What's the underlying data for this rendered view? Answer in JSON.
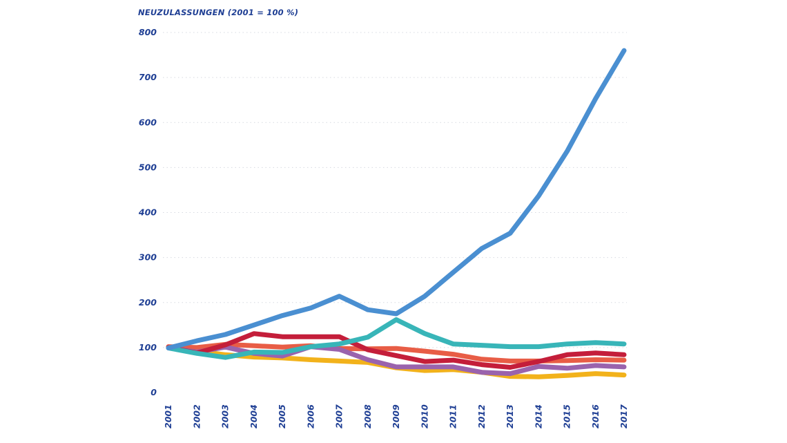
{
  "chart_data": {
    "type": "line",
    "title": "NEUZULASSUNGEN (2001 = 100 %)",
    "x": [
      "2001",
      "2002",
      "2003",
      "2004",
      "2005",
      "2006",
      "2007",
      "2008",
      "2009",
      "2010",
      "2011",
      "2012",
      "2013",
      "2014",
      "2015",
      "2016",
      "2017"
    ],
    "yticks": [
      "0",
      "100",
      "200",
      "300",
      "400",
      "500",
      "600",
      "700",
      "800"
    ],
    "ylim": [
      0,
      800
    ],
    "grid": true,
    "series": [
      {
        "color": "#f2b21b",
        "values": [
          100,
          92,
          84,
          79,
          77,
          73,
          70,
          67,
          55,
          49,
          51,
          45,
          36,
          35,
          38,
          42,
          39
        ]
      },
      {
        "color": "#e85d46",
        "values": [
          102,
          100,
          107,
          104,
          101,
          104,
          98,
          97,
          98,
          92,
          85,
          74,
          70,
          70,
          71,
          73,
          72
        ]
      },
      {
        "color": "#9a63ad",
        "values": [
          100,
          90,
          101,
          87,
          81,
          102,
          96,
          73,
          57,
          57,
          57,
          45,
          42,
          58,
          54,
          60,
          57
        ]
      },
      {
        "color": "#c41e3a",
        "values": [
          100,
          88,
          106,
          131,
          124,
          124,
          124,
          95,
          82,
          69,
          72,
          62,
          56,
          69,
          84,
          88,
          84
        ]
      },
      {
        "color": "#38b5b8",
        "values": [
          99,
          87,
          78,
          90,
          89,
          102,
          108,
          123,
          162,
          131,
          108,
          105,
          102,
          102,
          108,
          111,
          108
        ]
      },
      {
        "color": "#4a8fd1",
        "values": [
          99,
          115,
          129,
          150,
          171,
          188,
          214,
          184,
          175,
          214,
          267,
          320,
          354,
          437,
          536,
          653,
          760
        ]
      }
    ]
  }
}
